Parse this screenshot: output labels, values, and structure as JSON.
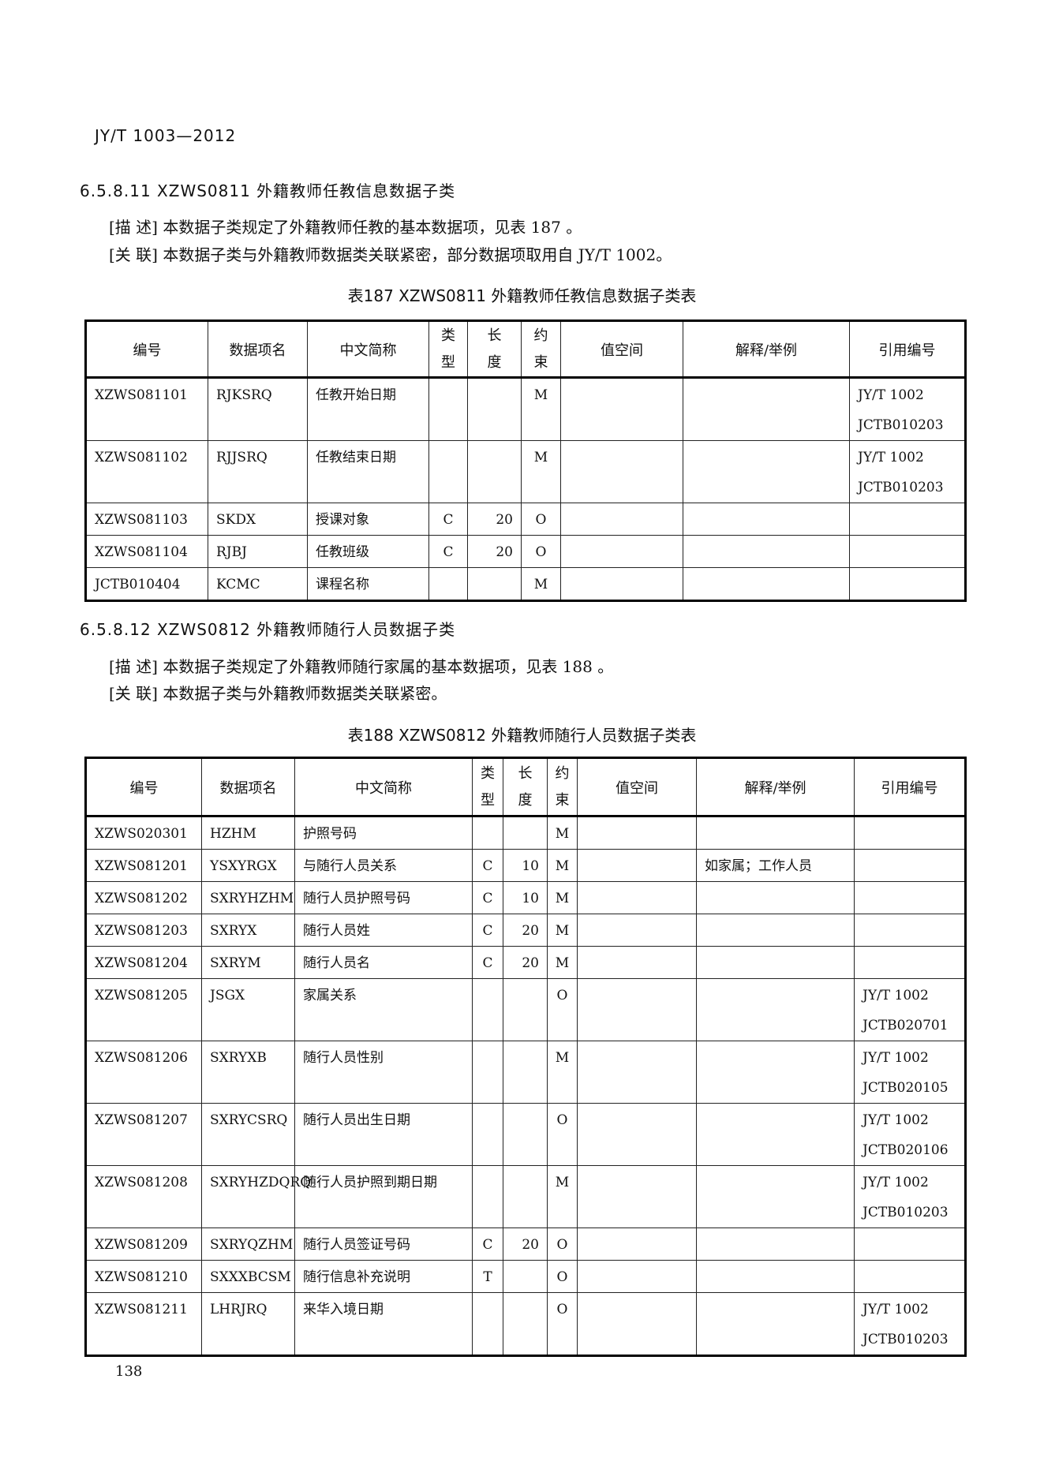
{
  "header": {
    "standard_no": "JY/T 1003—2012"
  },
  "section1": {
    "heading": "6.5.8.11  XZWS0811 外籍教师任教信息数据子类",
    "desc": "[描 述] 本数据子类规定了外籍教师任教的基本数据项，见表 187  。",
    "relation": "[关 联] 本数据子类与外籍教师数据类关联紧密，部分数据项取用自 JY/T 1002。",
    "caption": "表187   XZWS0811 外籍教师任教信息数据子类表"
  },
  "section2": {
    "heading": "6.5.8.12  XZWS0812 外籍教师随行人员数据子类",
    "desc": "[描 述] 本数据子类规定了外籍教师随行家属的基本数据项，见表 188  。",
    "relation": "[关 联] 本数据子类与外籍教师数据类关联紧密。",
    "caption": "表188   XZWS0812 外籍教师随行人员数据子类表"
  },
  "columns": [
    "编号",
    "数据项名",
    "中文简称",
    "类\n型",
    "长\n度",
    "约\n束",
    "值空间",
    "解释/举例",
    "引用编号"
  ],
  "table187": [
    [
      "XZWS081101",
      "RJKSRQ",
      "任教开始日期",
      "",
      "",
      "M",
      "",
      "",
      "JY/T 1002\nJCTB010203"
    ],
    [
      "XZWS081102",
      "RJJSRQ",
      "任教结束日期",
      "",
      "",
      "M",
      "",
      "",
      "JY/T 1002\nJCTB010203"
    ],
    [
      "XZWS081103",
      "SKDX",
      "授课对象",
      "C",
      "20",
      "O",
      "",
      "",
      ""
    ],
    [
      "XZWS081104",
      "RJBJ",
      "任教班级",
      "C",
      "20",
      "O",
      "",
      "",
      ""
    ],
    [
      "JCTB010404",
      "KCMC",
      "课程名称",
      "",
      "",
      "M",
      "",
      "",
      ""
    ]
  ],
  "table188": [
    [
      "XZWS020301",
      "HZHM",
      "护照号码",
      "",
      "",
      "M",
      "",
      "",
      ""
    ],
    [
      "XZWS081201",
      "YSXYRGX",
      "与随行人员关系",
      "C",
      "10",
      "M",
      "",
      "如家属；工作人员",
      ""
    ],
    [
      "XZWS081202",
      "SXRYHZHM",
      "随行人员护照号码",
      "C",
      "10",
      "M",
      "",
      "",
      ""
    ],
    [
      "XZWS081203",
      "SXRYX",
      "随行人员姓",
      "C",
      "20",
      "M",
      "",
      "",
      ""
    ],
    [
      "XZWS081204",
      "SXRYM",
      "随行人员名",
      "C",
      "20",
      "M",
      "",
      "",
      ""
    ],
    [
      "XZWS081205",
      "JSGX",
      "家属关系",
      "",
      "",
      "O",
      "",
      "",
      "JY/T 1002\nJCTB020701"
    ],
    [
      "XZWS081206",
      "SXRYXB",
      "随行人员性别",
      "",
      "",
      "M",
      "",
      "",
      "JY/T 1002\nJCTB020105"
    ],
    [
      "XZWS081207",
      "SXRYCSRQ",
      "随行人员出生日期",
      "",
      "",
      "O",
      "",
      "",
      "JY/T 1002\nJCTB020106"
    ],
    [
      "XZWS081208",
      "SXRYHZDQRQ",
      "随行人员护照到期日期",
      "",
      "",
      "M",
      "",
      "",
      "JY/T 1002\nJCTB010203"
    ],
    [
      "XZWS081209",
      "SXRYQZHM",
      "随行人员签证号码",
      "C",
      "20",
      "O",
      "",
      "",
      ""
    ],
    [
      "XZWS081210",
      "SXXXBCSM",
      "随行信息补充说明",
      "T",
      "",
      "O",
      "",
      "",
      ""
    ],
    [
      "XZWS081211",
      "LHRJRQ",
      "来华入境日期",
      "",
      "",
      "O",
      "",
      "",
      "JY/T 1002\nJCTB010203"
    ]
  ],
  "footer": {
    "page_number": "138"
  }
}
